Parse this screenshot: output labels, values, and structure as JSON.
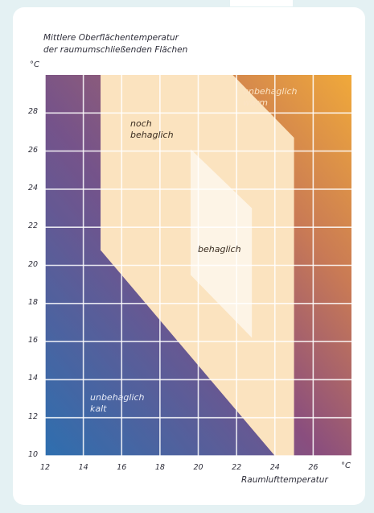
{
  "chart_data": {
    "type": "area",
    "title": "Mittlere Oberflächentemperatur",
    "title_line2": "der raumumschließenden Flächen",
    "y_unit": "°C",
    "x_unit": "°C",
    "xlabel": "Raumlufttemperatur",
    "xlim": [
      12,
      28
    ],
    "ylim": [
      10,
      30
    ],
    "x_ticks": [
      12,
      14,
      16,
      18,
      20,
      22,
      24,
      26
    ],
    "x_tick_labels": [
      "12",
      "14",
      "16",
      "18",
      "20",
      "22",
      "24",
      "26"
    ],
    "y_ticks": [
      10,
      12,
      14,
      16,
      18,
      20,
      22,
      24,
      26,
      28
    ],
    "y_tick_labels": [
      "10",
      "12",
      "14",
      "16",
      "18",
      "20",
      "22",
      "24",
      "26",
      "28"
    ],
    "grid": true,
    "regions": [
      {
        "label_lines": [
          "noch",
          "behaglich"
        ],
        "fill": "#fbe3bf",
        "points": [
          [
            14.9,
            30
          ],
          [
            21.8,
            30
          ],
          [
            25.0,
            26.7
          ],
          [
            25.0,
            10
          ],
          [
            24.0,
            10
          ],
          [
            14.9,
            20.8
          ]
        ]
      },
      {
        "label_lines": [
          "behaglich"
        ],
        "fill": "#fdf4e6",
        "points": [
          [
            19.6,
            26.1
          ],
          [
            22.8,
            23.0
          ],
          [
            22.8,
            16.2
          ],
          [
            19.6,
            19.5
          ]
        ]
      }
    ],
    "zones": [
      {
        "label_lines": [
          "unbehaglich",
          "warm"
        ],
        "color": "#e48f1e"
      },
      {
        "label_lines": [
          "unbehaglich",
          "kalt"
        ],
        "color": "#3d72b2"
      }
    ]
  }
}
